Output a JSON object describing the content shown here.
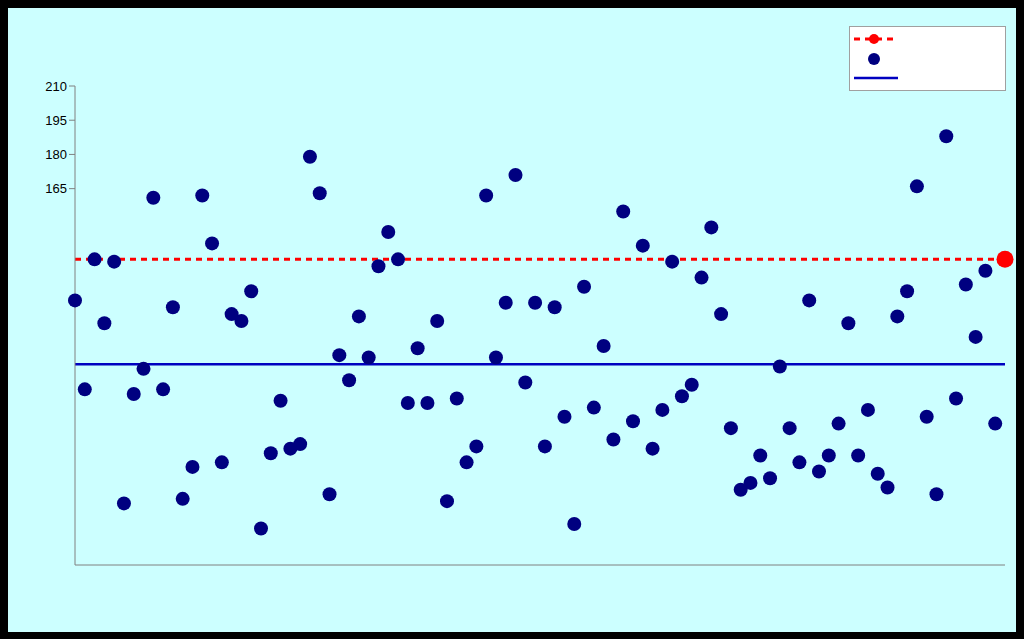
{
  "chart_data": {
    "type": "scatter",
    "xlim": [
      0,
      95
    ],
    "xticks": [
      0,
      5,
      10,
      15,
      20,
      25,
      30,
      35,
      40,
      45,
      50,
      55,
      60,
      65,
      70,
      75,
      80,
      85,
      90,
      95
    ],
    "ylim": [
      0,
      210
    ],
    "yticks": [
      165,
      180,
      195,
      210
    ],
    "tick_labels": "y",
    "grid": false,
    "series": [
      {
        "color": "#000080",
        "marker": "circle",
        "values": [
          116,
          77,
          134,
          106,
          133,
          27,
          75,
          86,
          161,
          77,
          113,
          29,
          43,
          162,
          141,
          45,
          110,
          107,
          120,
          16,
          49,
          72,
          51,
          53,
          179,
          163,
          31,
          92,
          81,
          109,
          91,
          131,
          146,
          134,
          71,
          95,
          71,
          107,
          28,
          73,
          45,
          52,
          162,
          91,
          115,
          171,
          80,
          115,
          52,
          113,
          65,
          18,
          122,
          69,
          96,
          55,
          155,
          63,
          140,
          51,
          68,
          133,
          74,
          79,
          126,
          148,
          110,
          60,
          33,
          36,
          48,
          38,
          87,
          60,
          45,
          116,
          41,
          48,
          62,
          106,
          48,
          68,
          40,
          34,
          109,
          120,
          166,
          65,
          31,
          188,
          73,
          123,
          100,
          129,
          62,
          null
        ]
      },
      {
        "color": "#ff0000",
        "marker": "circle",
        "values": [
          null,
          null,
          null,
          null,
          null,
          null,
          null,
          null,
          null,
          null,
          null,
          null,
          null,
          null,
          null,
          null,
          null,
          null,
          null,
          null,
          null,
          null,
          null,
          null,
          null,
          null,
          null,
          null,
          null,
          null,
          null,
          null,
          null,
          null,
          null,
          null,
          null,
          null,
          null,
          null,
          null,
          null,
          null,
          null,
          null,
          null,
          null,
          null,
          null,
          null,
          null,
          null,
          null,
          null,
          null,
          null,
          null,
          null,
          null,
          null,
          null,
          null,
          null,
          null,
          null,
          null,
          null,
          null,
          null,
          null,
          null,
          null,
          null,
          null,
          null,
          null,
          null,
          null,
          null,
          null,
          null,
          null,
          null,
          null,
          null,
          null,
          null,
          null,
          null,
          null,
          null,
          null,
          null,
          null,
          null,
          134
        ]
      }
    ],
    "reference_lines": [
      {
        "value": 134,
        "color": "#ff0000",
        "line_style": "dashed"
      },
      {
        "value": 88,
        "color": "#0000c0",
        "line_style": "solid"
      }
    ]
  }
}
